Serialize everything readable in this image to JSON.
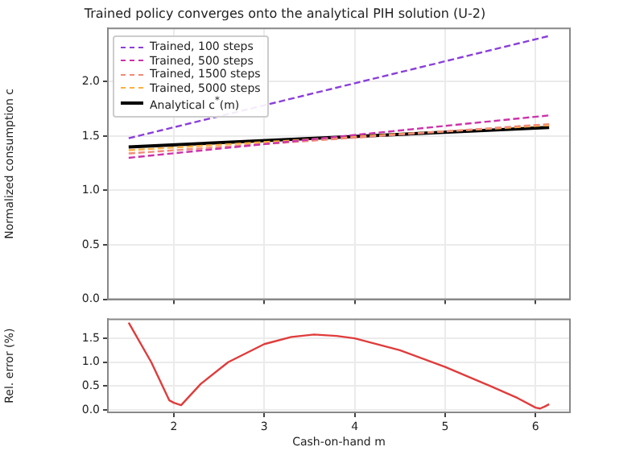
{
  "chart_data": [
    {
      "type": "line",
      "title": "Trained policy converges onto the analytical PIH solution (U-2)",
      "ylabel": "Normalized consumption c",
      "xlim": [
        1.27,
        6.38
      ],
      "xticks": [
        2,
        3,
        4,
        5,
        6
      ],
      "ylim": [
        0,
        2.49
      ],
      "yticks": [
        {
          "value": 0,
          "label": "0.0"
        },
        {
          "value": 0.5,
          "label": "0.5"
        },
        {
          "value": 1,
          "label": "1.0"
        },
        {
          "value": 1.5,
          "label": "1.5"
        },
        {
          "value": 2,
          "label": "2.0"
        }
      ],
      "tick_labels": "y",
      "grid": true,
      "legend": "top left",
      "x": [
        1.5,
        6.15
      ],
      "series": [
        {
          "name": "Trained, 100 steps",
          "color": "#8b3fd9",
          "line_style": "dashed",
          "values": [
            1.48,
            2.42
          ]
        },
        {
          "name": "Trained, 500 steps",
          "color": "#cc33aa",
          "line_style": "dashed",
          "values": [
            1.3,
            1.69
          ]
        },
        {
          "name": "Trained, 1500 steps",
          "color": "#f08a78",
          "line_style": "dashed",
          "values": [
            1.34,
            1.61
          ]
        },
        {
          "name": "Trained, 5000 steps",
          "color": "#ffb040",
          "line_style": "dashed",
          "values": [
            1.37,
            1.6
          ]
        },
        {
          "name": "Analytical c$^{*}$(m)",
          "color": "#000000",
          "line_style": "solid",
          "values": [
            1.4,
            1.58
          ]
        }
      ]
    },
    {
      "type": "line",
      "xlabel": "Cash-on-hand m",
      "ylabel": "Rel. error (%)",
      "xlim": [
        1.27,
        6.38
      ],
      "xticks": [
        2,
        3,
        4,
        5,
        6
      ],
      "ylim": [
        -0.05,
        1.9
      ],
      "yticks": [
        {
          "value": 0,
          "label": "0.0"
        },
        {
          "value": 0.5,
          "label": "0.5"
        },
        {
          "value": 1,
          "label": "1.0"
        },
        {
          "value": 1.5,
          "label": "1.5"
        }
      ],
      "grid": true,
      "legend": false,
      "x": [
        1.5,
        1.75,
        1.95,
        2.0,
        2.08,
        2.3,
        2.6,
        3.0,
        3.3,
        3.55,
        3.8,
        4.0,
        4.5,
        5.0,
        5.5,
        5.8,
        6.0,
        6.05,
        6.1,
        6.15
      ],
      "series": [
        {
          "color": "#e03c3c",
          "line_style": "solid",
          "values": [
            1.83,
            1.0,
            0.2,
            0.15,
            0.1,
            0.55,
            1.0,
            1.38,
            1.53,
            1.58,
            1.55,
            1.5,
            1.25,
            0.9,
            0.5,
            0.25,
            0.05,
            0.03,
            0.07,
            0.12
          ]
        }
      ]
    }
  ]
}
